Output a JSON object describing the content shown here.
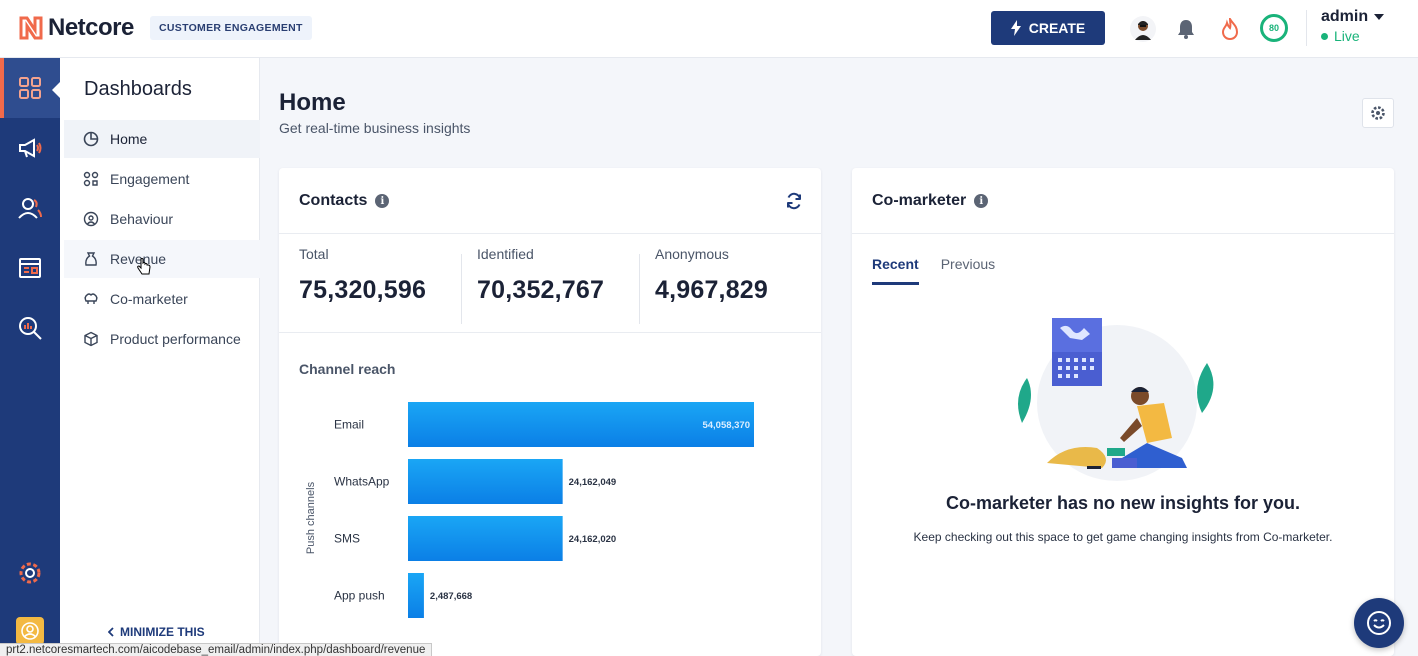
{
  "brand": {
    "name": "Netcore",
    "product": "CUSTOMER ENGAGEMENT",
    "accent": "#f06a4b",
    "primary": "#1e3a7a"
  },
  "header": {
    "create_label": "CREATE",
    "score": "80",
    "user": {
      "name": "admin",
      "status": "Live"
    },
    "icons": [
      "avatar-icon",
      "bell-icon",
      "flame-icon",
      "score-ring"
    ]
  },
  "rail": {
    "items": [
      "dashboard-icon",
      "megaphone-icon",
      "users-icon",
      "web-icon",
      "analytics-icon",
      "settings-gear-icon",
      "user-avatar-icon"
    ]
  },
  "sidenav": {
    "title": "Dashboards",
    "items": [
      {
        "label": "Home",
        "icon": "pie-icon"
      },
      {
        "label": "Engagement",
        "icon": "engagement-icon"
      },
      {
        "label": "Behaviour",
        "icon": "behaviour-icon"
      },
      {
        "label": "Revenue",
        "icon": "revenue-icon"
      },
      {
        "label": "Co-marketer",
        "icon": "comarketer-icon"
      },
      {
        "label": "Product performance",
        "icon": "cube-icon"
      }
    ],
    "minimize_label": "MINIMIZE THIS"
  },
  "page": {
    "title": "Home",
    "subtitle": "Get real-time business insights"
  },
  "contacts": {
    "title": "Contacts",
    "stats": [
      {
        "label": "Total",
        "value": "75,320,596"
      },
      {
        "label": "Identified",
        "value": "70,352,767"
      },
      {
        "label": "Anonymous",
        "value": "4,967,829"
      }
    ],
    "channel_reach_title": "Channel reach"
  },
  "chart_data": {
    "type": "bar",
    "orientation": "horizontal",
    "ylabel": "Push channels",
    "categories": [
      "Email",
      "WhatsApp",
      "SMS",
      "App push"
    ],
    "values": [
      54058370,
      24162049,
      24162020,
      2487668
    ],
    "value_labels": [
      "54,058,370",
      "24,162,049",
      "24,162,020",
      "2,487,668"
    ],
    "grid": false,
    "colors": {
      "bar_top": "#1aa6f5",
      "bar_bottom": "#0b7fe6"
    }
  },
  "comarketer": {
    "title": "Co-marketer",
    "tabs": [
      "Recent",
      "Previous"
    ],
    "active_tab": "Recent",
    "empty_title": "Co-marketer has no new insights for you.",
    "empty_desc": "Keep checking out this space to get game changing insights from Co-marketer."
  },
  "status_url": "prt2.netcoresmartech.com/aicodebase_email/admin/index.php/dashboard/revenue"
}
